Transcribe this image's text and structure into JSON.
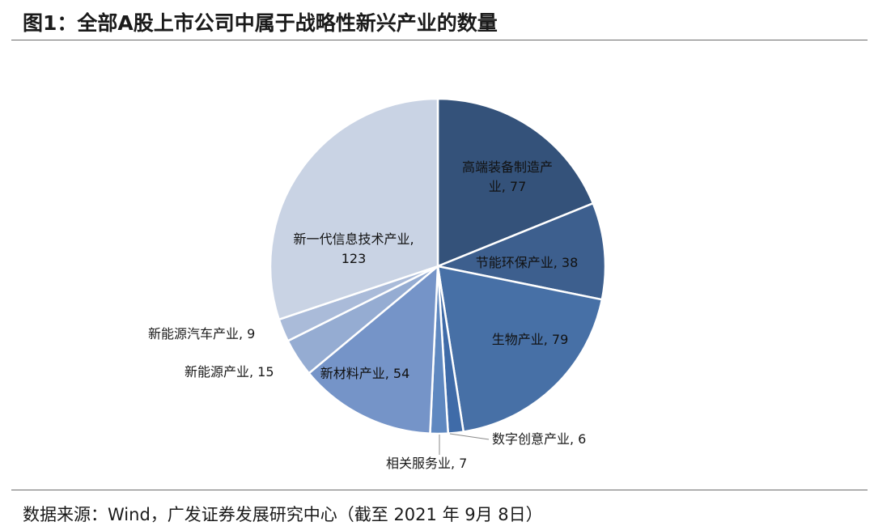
{
  "header": {
    "title": "图1：全部A股上市公司中属于战略性新兴产业的数量"
  },
  "footer": {
    "source": "数据来源：Wind，广发证券发展研究中心（截至 2021 年 9月 8日）"
  },
  "colors": {
    "slices": [
      "#34527a",
      "#3d5f8e",
      "#4770a6",
      "#3f6ba8",
      "#5f88c0",
      "#7594c8",
      "#95acd2",
      "#aabbd9",
      "#c9d3e4"
    ],
    "border": "#ffffff",
    "leader": "#8a8a8a"
  },
  "chart_data": {
    "type": "pie",
    "title": "",
    "slices": [
      {
        "category": "高端装备制造产业",
        "value": 77,
        "label_lines": [
          "高端装备制造产",
          "业, 77"
        ]
      },
      {
        "category": "节能环保产业",
        "value": 38,
        "label_lines": [
          "节能环保产业, 38"
        ]
      },
      {
        "category": "生物产业",
        "value": 79,
        "label_lines": [
          "生物产业, 79"
        ]
      },
      {
        "category": "数字创意产业",
        "value": 6,
        "label_lines": [
          "数字创意产业, 6"
        ]
      },
      {
        "category": "相关服务业",
        "value": 7,
        "label_lines": [
          "相关服务业, 7"
        ]
      },
      {
        "category": "新材料产业",
        "value": 54,
        "label_lines": [
          "新材料产业, 54"
        ]
      },
      {
        "category": "新能源产业",
        "value": 15,
        "label_lines": [
          "新能源产业, 15"
        ]
      },
      {
        "category": "新能源汽车产业",
        "value": 9,
        "label_lines": [
          "新能源汽车产业, 9"
        ]
      },
      {
        "category": "新一代信息技术产业",
        "value": 123,
        "label_lines": [
          "新一代信息技术产业,",
          "123"
        ]
      }
    ],
    "start": "12 o'clock",
    "direction": "clockwise",
    "legend": "none"
  }
}
